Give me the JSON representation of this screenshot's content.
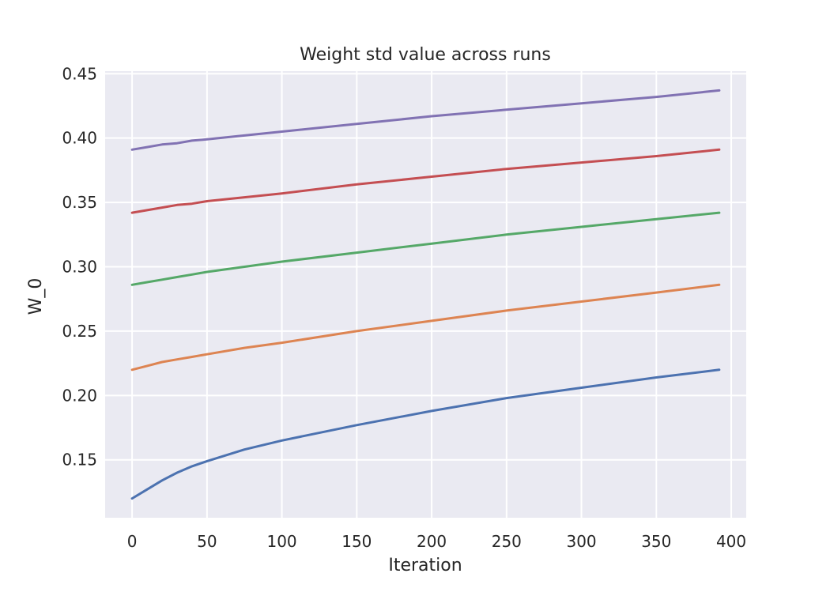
{
  "chart_data": {
    "type": "line",
    "title": "Weight std value across runs",
    "xlabel": "Iteration",
    "ylabel": "W_0",
    "xlim": [
      -18,
      410
    ],
    "ylim": [
      0.105,
      0.452
    ],
    "xticks": [
      0,
      50,
      100,
      150,
      200,
      250,
      300,
      350,
      400
    ],
    "yticks": [
      0.15,
      0.2,
      0.25,
      0.3,
      0.35,
      0.4,
      0.45
    ],
    "grid": true,
    "legend": "none",
    "background": "#eaeaf2",
    "gridColor": "#ffffff",
    "series": [
      {
        "color": "#4c72b0",
        "x": [
          0,
          10,
          20,
          30,
          40,
          50,
          75,
          100,
          150,
          200,
          250,
          300,
          350,
          392
        ],
        "y": [
          0.12,
          0.127,
          0.134,
          0.14,
          0.145,
          0.149,
          0.158,
          0.165,
          0.177,
          0.188,
          0.198,
          0.206,
          0.214,
          0.22
        ]
      },
      {
        "color": "#dd8452",
        "x": [
          0,
          10,
          20,
          30,
          40,
          50,
          75,
          100,
          150,
          200,
          250,
          300,
          350,
          392
        ],
        "y": [
          0.22,
          0.223,
          0.226,
          0.228,
          0.23,
          0.232,
          0.237,
          0.241,
          0.25,
          0.258,
          0.266,
          0.273,
          0.28,
          0.286
        ]
      },
      {
        "color": "#55a868",
        "x": [
          0,
          10,
          20,
          30,
          40,
          50,
          75,
          100,
          150,
          200,
          250,
          300,
          350,
          392
        ],
        "y": [
          0.286,
          0.288,
          0.29,
          0.292,
          0.294,
          0.296,
          0.3,
          0.304,
          0.311,
          0.318,
          0.325,
          0.331,
          0.337,
          0.342
        ]
      },
      {
        "color": "#c44e52",
        "x": [
          0,
          10,
          20,
          30,
          40,
          50,
          75,
          100,
          150,
          200,
          250,
          300,
          350,
          392
        ],
        "y": [
          0.342,
          0.344,
          0.346,
          0.348,
          0.349,
          0.351,
          0.354,
          0.357,
          0.364,
          0.37,
          0.376,
          0.381,
          0.386,
          0.391
        ]
      },
      {
        "color": "#8172b3",
        "x": [
          0,
          10,
          20,
          30,
          40,
          50,
          75,
          100,
          150,
          200,
          250,
          300,
          350,
          392
        ],
        "y": [
          0.391,
          0.393,
          0.395,
          0.396,
          0.398,
          0.399,
          0.402,
          0.405,
          0.411,
          0.417,
          0.422,
          0.427,
          0.432,
          0.437
        ]
      }
    ]
  }
}
